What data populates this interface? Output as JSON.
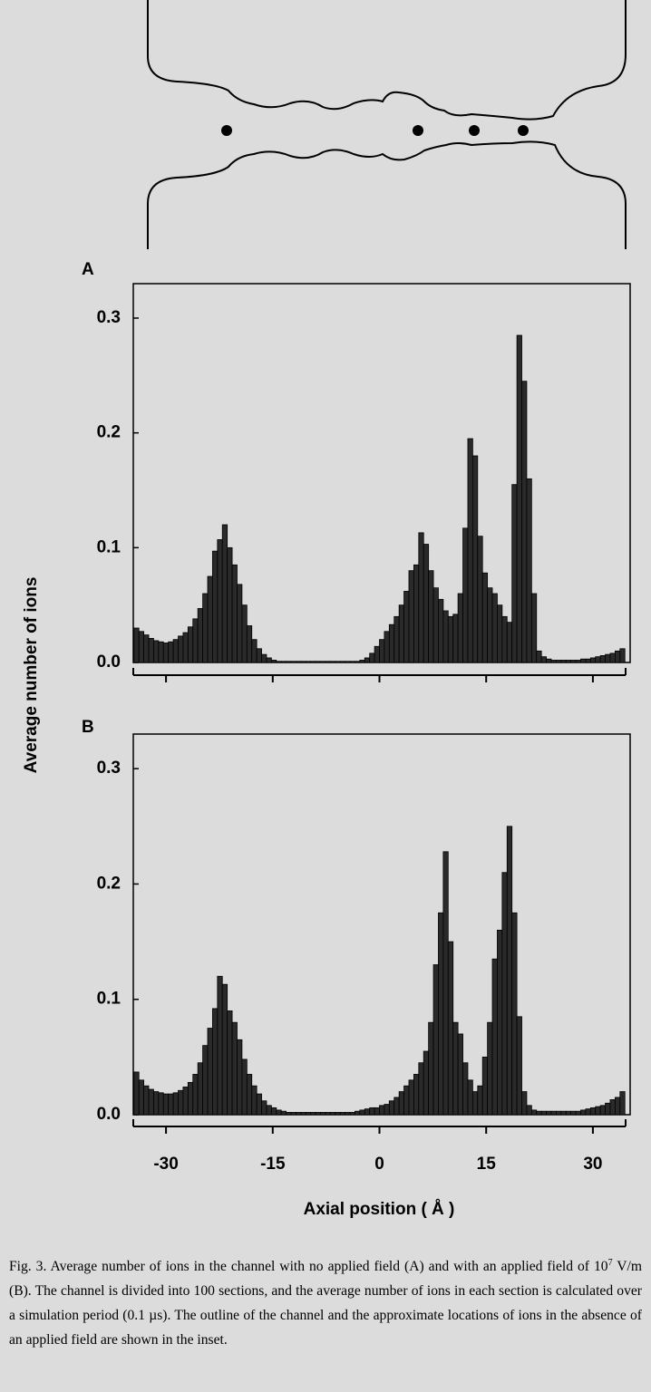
{
  "chart_data": [
    {
      "type": "histogram",
      "panel": "A",
      "show_xtick_labels": false,
      "color": "#2a2a2a",
      "bins": [
        -34.5,
        -33.81,
        -33.12,
        -32.43,
        -31.74,
        -31.05,
        -30.36,
        -29.67,
        -28.98,
        -28.29,
        -27.6,
        -26.91,
        -26.22,
        -25.53,
        -24.84,
        -24.15,
        -23.46,
        -22.77,
        -22.08,
        -21.39,
        -20.7,
        -20.01,
        -19.32,
        -18.63,
        -17.94,
        -17.25,
        -16.56,
        -15.87,
        -15.18,
        -14.49,
        -13.8,
        -13.11,
        -12.42,
        -11.73,
        -11.04,
        -10.35,
        -9.66,
        -8.97,
        -8.28,
        -7.59,
        -6.9,
        -6.21,
        -5.52,
        -4.83,
        -4.14,
        -3.45,
        -2.76,
        -2.07,
        -1.38,
        -0.69,
        0,
        0.69,
        1.38,
        2.07,
        2.76,
        3.45,
        4.14,
        4.83,
        5.52,
        6.21,
        6.9,
        7.59,
        8.28,
        8.97,
        9.66,
        10.35,
        11.04,
        11.73,
        12.42,
        13.11,
        13.8,
        14.49,
        15.18,
        15.87,
        16.56,
        17.25,
        17.94,
        18.63,
        19.32,
        20.01,
        20.7,
        21.39,
        22.08,
        22.77,
        23.46,
        24.15,
        24.84,
        25.53,
        26.22,
        26.91,
        27.6,
        28.29,
        28.98,
        29.67,
        30.36,
        31.05,
        31.74,
        32.43,
        33.12,
        33.81,
        34.5
      ],
      "values": [
        0.03,
        0.027,
        0.024,
        0.021,
        0.019,
        0.018,
        0.017,
        0.018,
        0.02,
        0.023,
        0.026,
        0.031,
        0.038,
        0.047,
        0.06,
        0.075,
        0.097,
        0.107,
        0.12,
        0.1,
        0.085,
        0.068,
        0.05,
        0.032,
        0.02,
        0.012,
        0.007,
        0.004,
        0.002,
        0.001,
        0.001,
        0.001,
        0.001,
        0.001,
        0.001,
        0.001,
        0.001,
        0.001,
        0.001,
        0.001,
        0.001,
        0.001,
        0.001,
        0.001,
        0.001,
        0.001,
        0.002,
        0.004,
        0.008,
        0.014,
        0.02,
        0.027,
        0.033,
        0.04,
        0.05,
        0.062,
        0.08,
        0.085,
        0.113,
        0.103,
        0.08,
        0.065,
        0.055,
        0.045,
        0.04,
        0.042,
        0.06,
        0.117,
        0.195,
        0.18,
        0.11,
        0.078,
        0.065,
        0.06,
        0.05,
        0.04,
        0.035,
        0.155,
        0.285,
        0.245,
        0.16,
        0.06,
        0.01,
        0.005,
        0.003,
        0.002,
        0.002,
        0.002,
        0.002,
        0.002,
        0.002,
        0.003,
        0.003,
        0.004,
        0.005,
        0.006,
        0.007,
        0.008,
        0.01,
        0.012
      ],
      "xlim": [
        -34.6,
        34.6
      ],
      "xticks": [
        -30,
        -15,
        0,
        15,
        30
      ],
      "ylim": [
        0,
        0.33
      ],
      "yticks": [
        {
          "value": 0,
          "label": "0.0"
        },
        0.1,
        0.2,
        0.3
      ]
    },
    {
      "type": "histogram",
      "panel": "B",
      "show_xtick_labels": true,
      "color": "#2a2a2a",
      "bins": [
        -34.5,
        -33.81,
        -33.12,
        -32.43,
        -31.74,
        -31.05,
        -30.36,
        -29.67,
        -28.98,
        -28.29,
        -27.6,
        -26.91,
        -26.22,
        -25.53,
        -24.84,
        -24.15,
        -23.46,
        -22.77,
        -22.08,
        -21.39,
        -20.7,
        -20.01,
        -19.32,
        -18.63,
        -17.94,
        -17.25,
        -16.56,
        -15.87,
        -15.18,
        -14.49,
        -13.8,
        -13.11,
        -12.42,
        -11.73,
        -11.04,
        -10.35,
        -9.66,
        -8.97,
        -8.28,
        -7.59,
        -6.9,
        -6.21,
        -5.52,
        -4.83,
        -4.14,
        -3.45,
        -2.76,
        -2.07,
        -1.38,
        -0.69,
        0,
        0.69,
        1.38,
        2.07,
        2.76,
        3.45,
        4.14,
        4.83,
        5.52,
        6.21,
        6.9,
        7.59,
        8.28,
        8.97,
        9.66,
        10.35,
        11.04,
        11.73,
        12.42,
        13.11,
        13.8,
        14.49,
        15.18,
        15.87,
        16.56,
        17.25,
        17.94,
        18.63,
        19.32,
        20.01,
        20.7,
        21.39,
        22.08,
        22.77,
        23.46,
        24.15,
        24.84,
        25.53,
        26.22,
        26.91,
        27.6,
        28.29,
        28.98,
        29.67,
        30.36,
        31.05,
        31.74,
        32.43,
        33.12,
        33.81,
        34.5
      ],
      "values": [
        0.037,
        0.03,
        0.025,
        0.022,
        0.02,
        0.019,
        0.018,
        0.018,
        0.019,
        0.021,
        0.024,
        0.028,
        0.035,
        0.045,
        0.06,
        0.075,
        0.092,
        0.12,
        0.113,
        0.09,
        0.08,
        0.065,
        0.048,
        0.035,
        0.025,
        0.018,
        0.012,
        0.008,
        0.006,
        0.004,
        0.003,
        0.002,
        0.002,
        0.002,
        0.002,
        0.002,
        0.002,
        0.002,
        0.002,
        0.002,
        0.002,
        0.002,
        0.002,
        0.002,
        0.002,
        0.003,
        0.004,
        0.005,
        0.006,
        0.006,
        0.008,
        0.009,
        0.012,
        0.015,
        0.02,
        0.025,
        0.03,
        0.035,
        0.045,
        0.055,
        0.08,
        0.13,
        0.175,
        0.228,
        0.15,
        0.08,
        0.07,
        0.045,
        0.03,
        0.02,
        0.025,
        0.05,
        0.08,
        0.135,
        0.16,
        0.21,
        0.25,
        0.175,
        0.085,
        0.02,
        0.008,
        0.004,
        0.003,
        0.003,
        0.003,
        0.003,
        0.003,
        0.003,
        0.003,
        0.003,
        0.003,
        0.004,
        0.005,
        0.006,
        0.007,
        0.008,
        0.01,
        0.013,
        0.015,
        0.02
      ],
      "xlim": [
        -34.6,
        34.6
      ],
      "xticks": [
        -30,
        -15,
        0,
        15,
        30
      ],
      "ylim": [
        0,
        0.33
      ],
      "yticks": [
        {
          "value": 0,
          "label": "0.0"
        },
        0.1,
        0.2,
        0.3
      ]
    }
  ],
  "ylabel": "Average  number  of ions",
  "xlabel": "Axial position  ( Å )",
  "caption": {
    "before": "Fig. 3. Average number of ions in the channel with no applied field (A) and with an applied field of 10",
    "sup": "7",
    "after": " V/m (B). The channel is divided into 100 sections, and the average number of ions in each section is calculated over a simulation period (0.1 µs). The outline of the channel and the approximate locations of ions in the absence of an applied field are shown in the inset."
  }
}
